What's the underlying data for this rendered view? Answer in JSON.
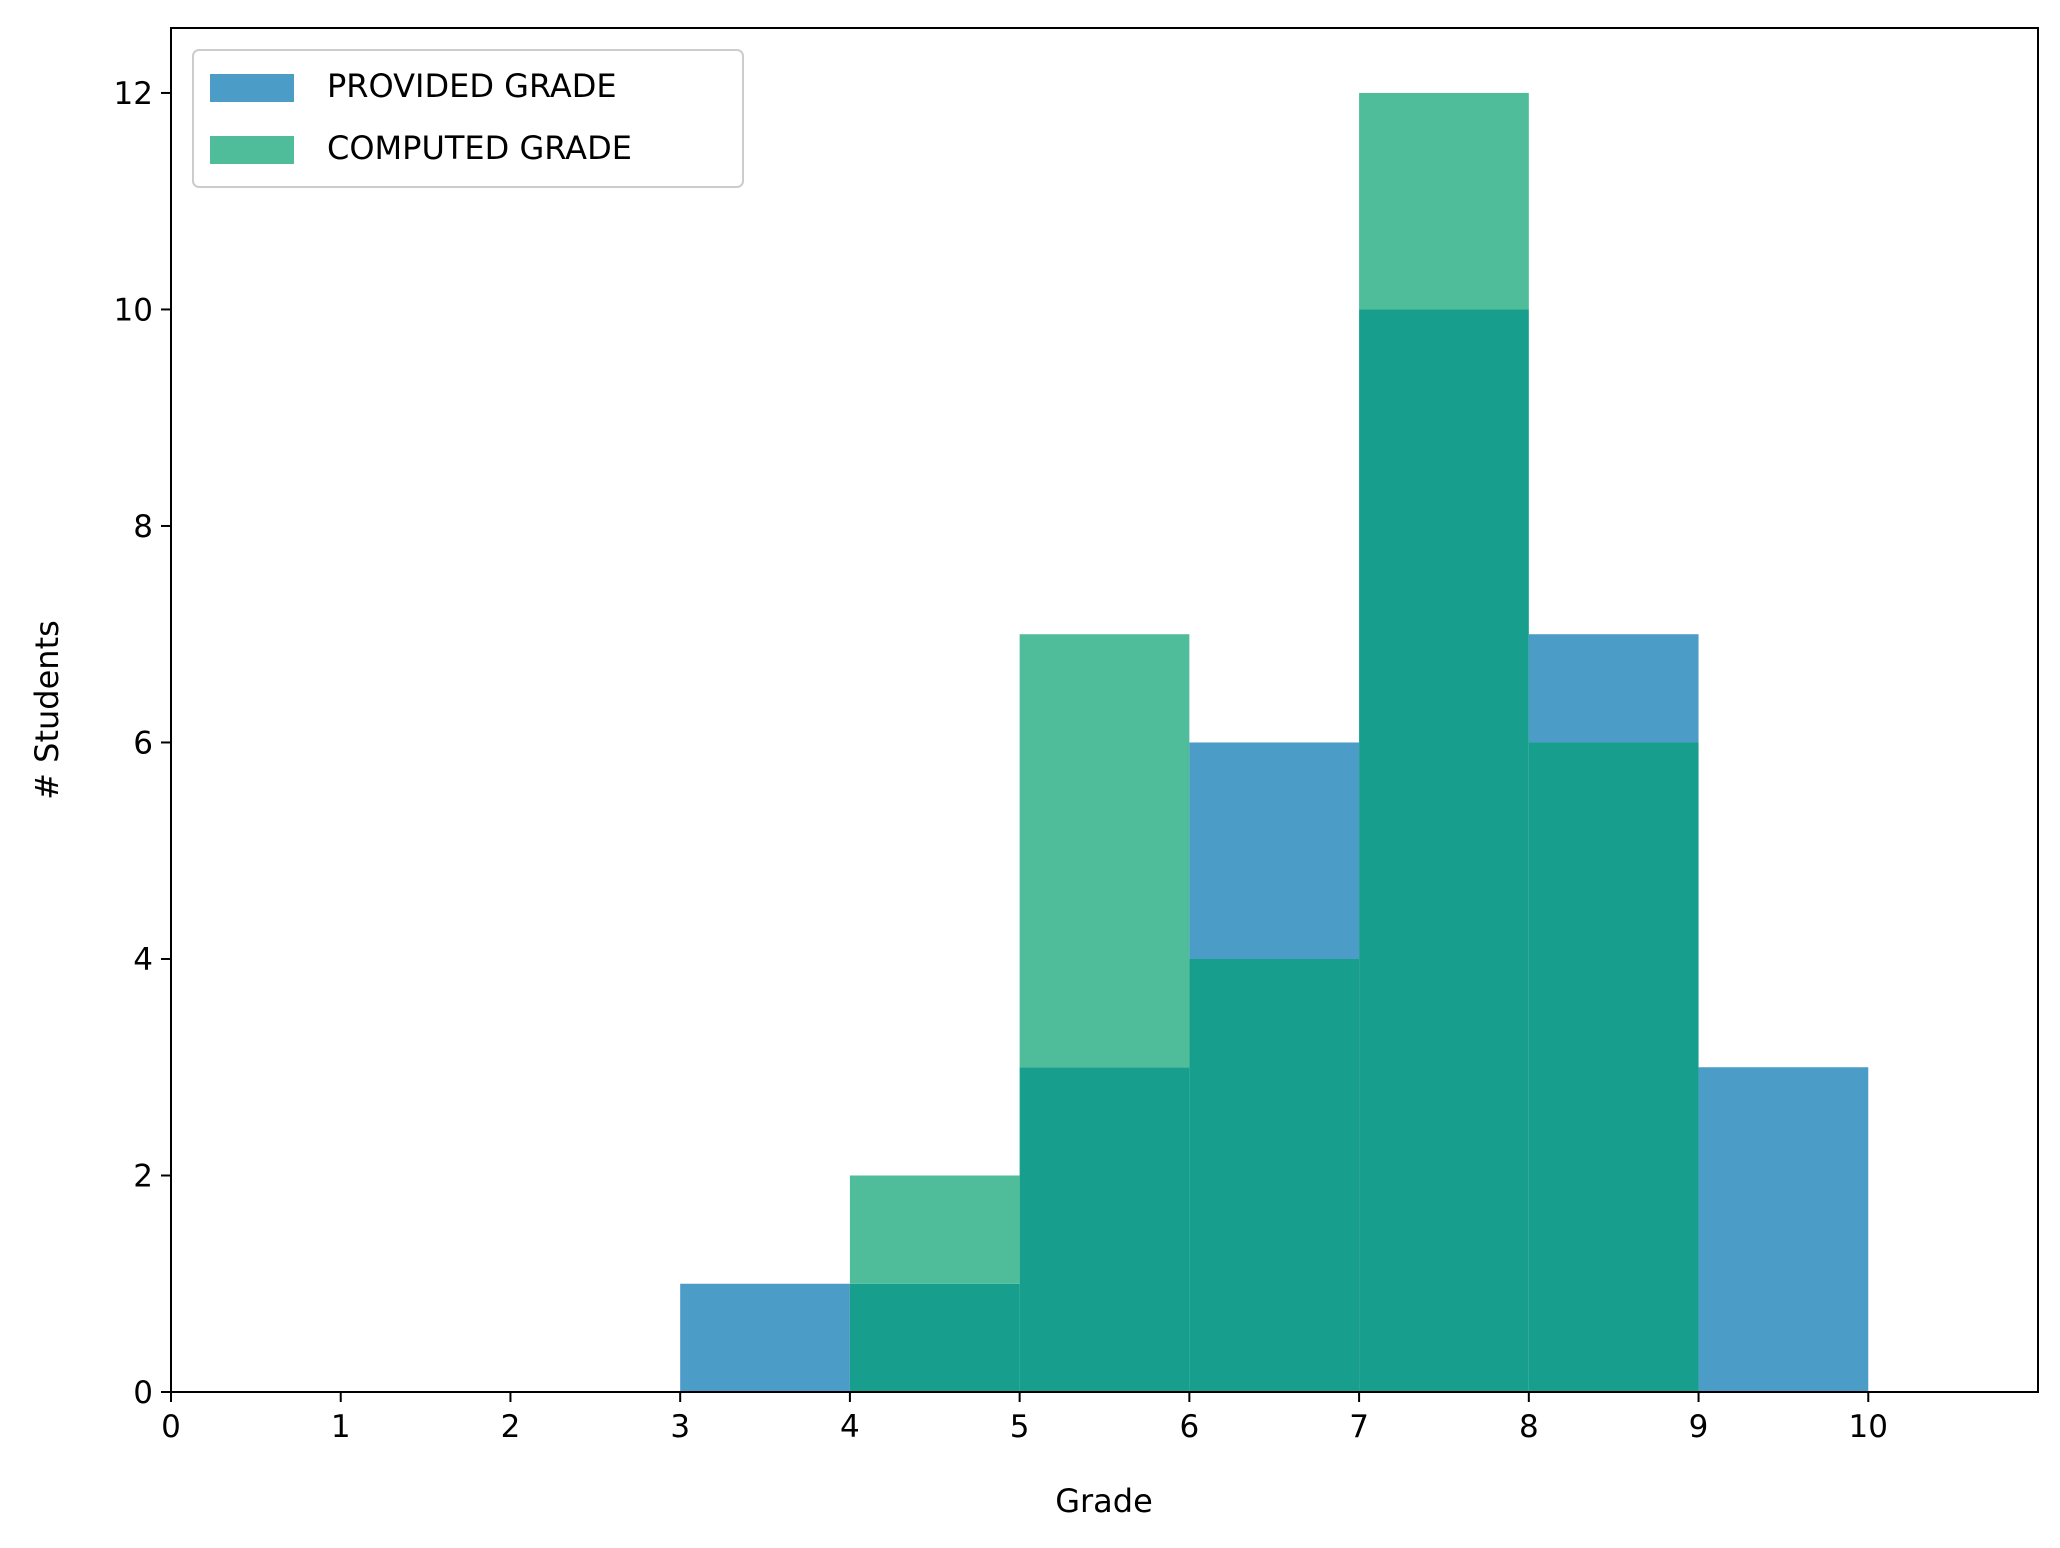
{
  "chart_data": {
    "type": "bar",
    "xlabel": "Grade",
    "ylabel": "# Students",
    "xlim": [
      0,
      11
    ],
    "ylim": [
      0,
      12.6
    ],
    "xticks": [
      "0",
      "1",
      "2",
      "3",
      "4",
      "5",
      "6",
      "7",
      "8",
      "9",
      "10"
    ],
    "yticks": [
      "0",
      "2",
      "4",
      "6",
      "8",
      "10",
      "12"
    ],
    "grid": false,
    "legend_position": "top-left",
    "bin_edges": [
      3,
      4,
      5,
      6,
      7,
      8,
      9,
      10
    ],
    "series": [
      {
        "name": "PROVIDED GRADE",
        "color": "#4c9cc8",
        "values": [
          1,
          1,
          3,
          6,
          10,
          7,
          3
        ]
      },
      {
        "name": "COMPUTED GRADE",
        "color": "#4fbc9a",
        "values": [
          0,
          2,
          7,
          4,
          12,
          6,
          0
        ]
      }
    ],
    "overlap_color": "#179e8c"
  }
}
